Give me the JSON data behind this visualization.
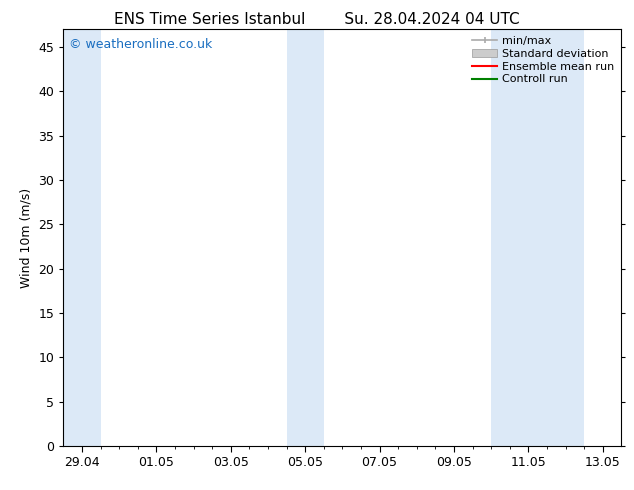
{
  "title_left": "ENS Time Series Istanbul",
  "title_right": "Su. 28.04.2024 04 UTC",
  "ylabel": "Wind 10m (m/s)",
  "ylim": [
    0,
    47
  ],
  "yticks": [
    0,
    5,
    10,
    15,
    20,
    25,
    30,
    35,
    40,
    45
  ],
  "xtick_labels": [
    "29.04",
    "01.05",
    "03.05",
    "05.05",
    "07.05",
    "09.05",
    "11.05",
    "13.05"
  ],
  "xtick_positions": [
    0,
    2,
    4,
    6,
    8,
    10,
    12,
    14
  ],
  "x_minor_positions": [
    0.5,
    1,
    1.5,
    2.5,
    3,
    3.5,
    4.5,
    5,
    5.5,
    6.5,
    7,
    7.5,
    8.5,
    9,
    9.5,
    10.5,
    11,
    11.5,
    12.5,
    13,
    13.5
  ],
  "xlim": [
    -0.5,
    14.5
  ],
  "shaded_bands": [
    {
      "x_start": -0.5,
      "x_end": 0.5,
      "color": "#dce9f7"
    },
    {
      "x_start": 5.5,
      "x_end": 6.5,
      "color": "#dce9f7"
    },
    {
      "x_start": 11.0,
      "x_end": 13.5,
      "color": "#dce9f7"
    }
  ],
  "watermark_text": "© weatheronline.co.uk",
  "watermark_color": "#1a6ec0",
  "background_color": "#ffffff",
  "plot_bg_color": "#ffffff",
  "legend_items": [
    {
      "label": "min/max",
      "color": "#aaaaaa",
      "lw": 1.2
    },
    {
      "label": "Standard deviation",
      "color": "#cccccc",
      "lw": 6
    },
    {
      "label": "Ensemble mean run",
      "color": "#ff0000",
      "lw": 1.5
    },
    {
      "label": "Controll run",
      "color": "#008000",
      "lw": 1.5
    }
  ],
  "spine_color": "#000000",
  "tick_color": "#000000",
  "title_fontsize": 11,
  "label_fontsize": 9,
  "tick_fontsize": 9,
  "legend_fontsize": 8,
  "watermark_fontsize": 9
}
